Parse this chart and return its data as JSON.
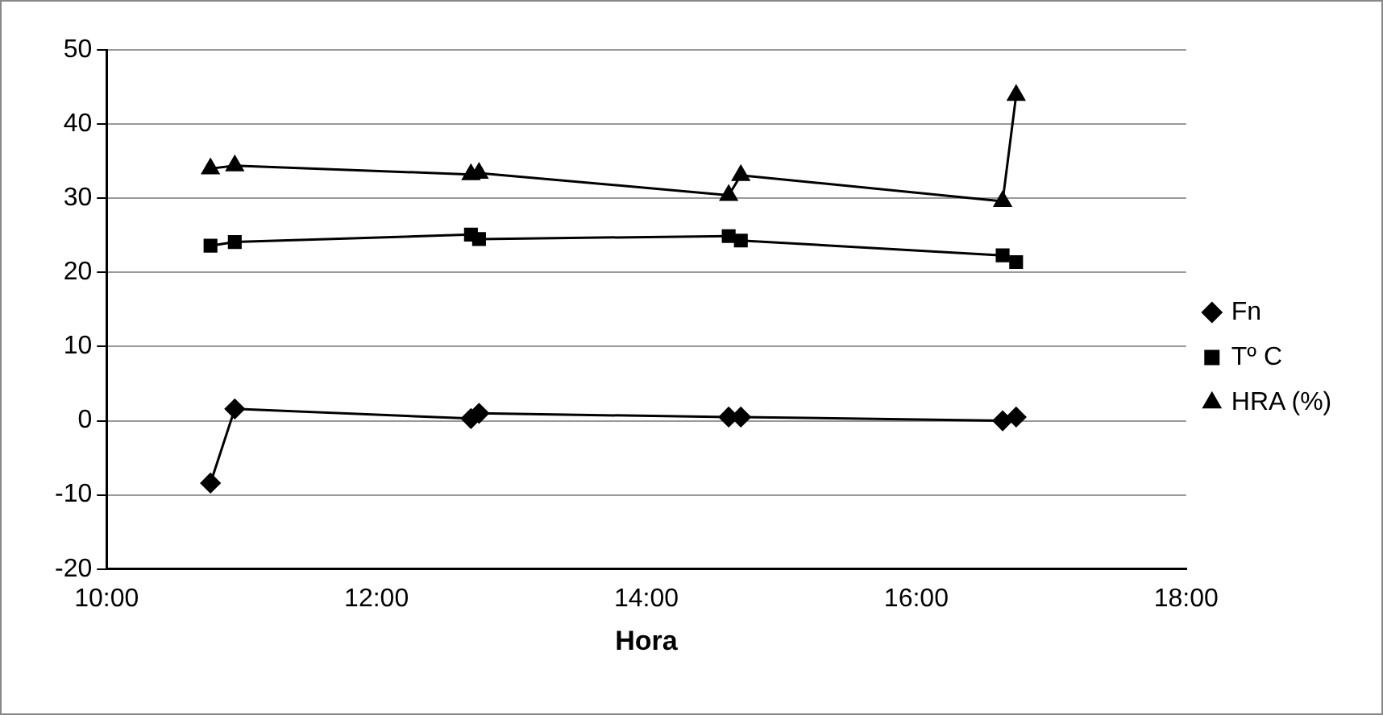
{
  "chart_data": {
    "type": "line",
    "xlabel": "Hora",
    "xlim": [
      10,
      18
    ],
    "xticks": [
      {
        "value": 10,
        "label": "10:00"
      },
      {
        "value": 12,
        "label": "12:00"
      },
      {
        "value": 14,
        "label": "14:00"
      },
      {
        "value": 16,
        "label": "16:00"
      },
      {
        "value": 18,
        "label": "18:00"
      }
    ],
    "ylim": [
      -20,
      50
    ],
    "yticks": [
      -20,
      -10,
      0,
      10,
      20,
      30,
      40,
      50
    ],
    "grid": "y",
    "legend": "right",
    "line_style": "solid",
    "x": [
      10.77,
      10.95,
      12.7,
      12.76,
      14.61,
      14.7,
      16.64,
      16.74
    ],
    "series": [
      {
        "name": "Fn",
        "color": "#000000",
        "marker": "diamond",
        "values": [
          -8.4,
          1.6,
          0.3,
          1,
          0.5,
          0.5,
          0,
          0.5
        ]
      },
      {
        "name": "Tº C",
        "color": "#000000",
        "marker": "square",
        "values": [
          23.6,
          24.1,
          25.1,
          24.5,
          24.9,
          24.3,
          22.3,
          21.4
        ]
      },
      {
        "name": "HRA (%)",
        "color": "#000000",
        "marker": "triangle",
        "values": [
          34,
          34.4,
          33.2,
          33.4,
          30.4,
          33.1,
          29.6,
          43.9
        ]
      }
    ]
  }
}
